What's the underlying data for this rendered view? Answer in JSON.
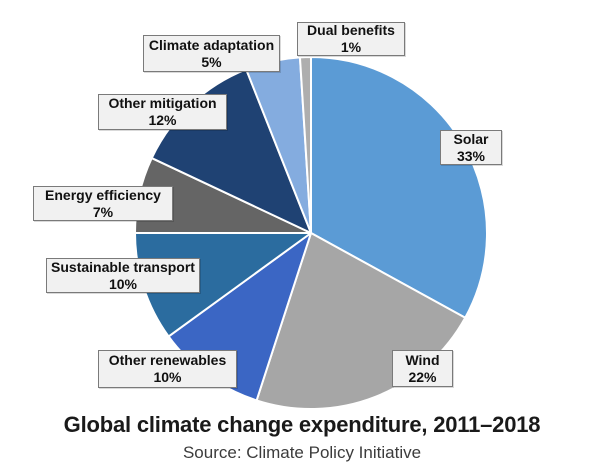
{
  "chart_data": {
    "type": "pie",
    "title": "Global climate change expenditure, 2011–2018",
    "source": "Source: Climate Policy Initiative",
    "direction": "clockwise",
    "start_angle_deg": 0,
    "legend_position": "none",
    "slices": [
      {
        "label": "Solar",
        "value_pct": 33,
        "display": "33%",
        "color": "#5B9BD5"
      },
      {
        "label": "Wind",
        "value_pct": 22,
        "display": "22%",
        "color": "#A6A6A6"
      },
      {
        "label": "Other renewables",
        "value_pct": 10,
        "display": "10%",
        "color": "#3B66C4"
      },
      {
        "label": "Sustainable transport",
        "value_pct": 10,
        "display": "10%",
        "color": "#2B6C9F"
      },
      {
        "label": "Energy efficiency",
        "value_pct": 7,
        "display": "7%",
        "color": "#656565"
      },
      {
        "label": "Other mitigation",
        "value_pct": 12,
        "display": "12%",
        "color": "#1F4273"
      },
      {
        "label": "Climate adaptation",
        "value_pct": 5,
        "display": "5%",
        "color": "#84ACDF"
      },
      {
        "label": "Dual benefits",
        "value_pct": 1,
        "display": "1%",
        "color": "#AEAEAE"
      }
    ],
    "slice_border_color": "#FFFFFF"
  }
}
